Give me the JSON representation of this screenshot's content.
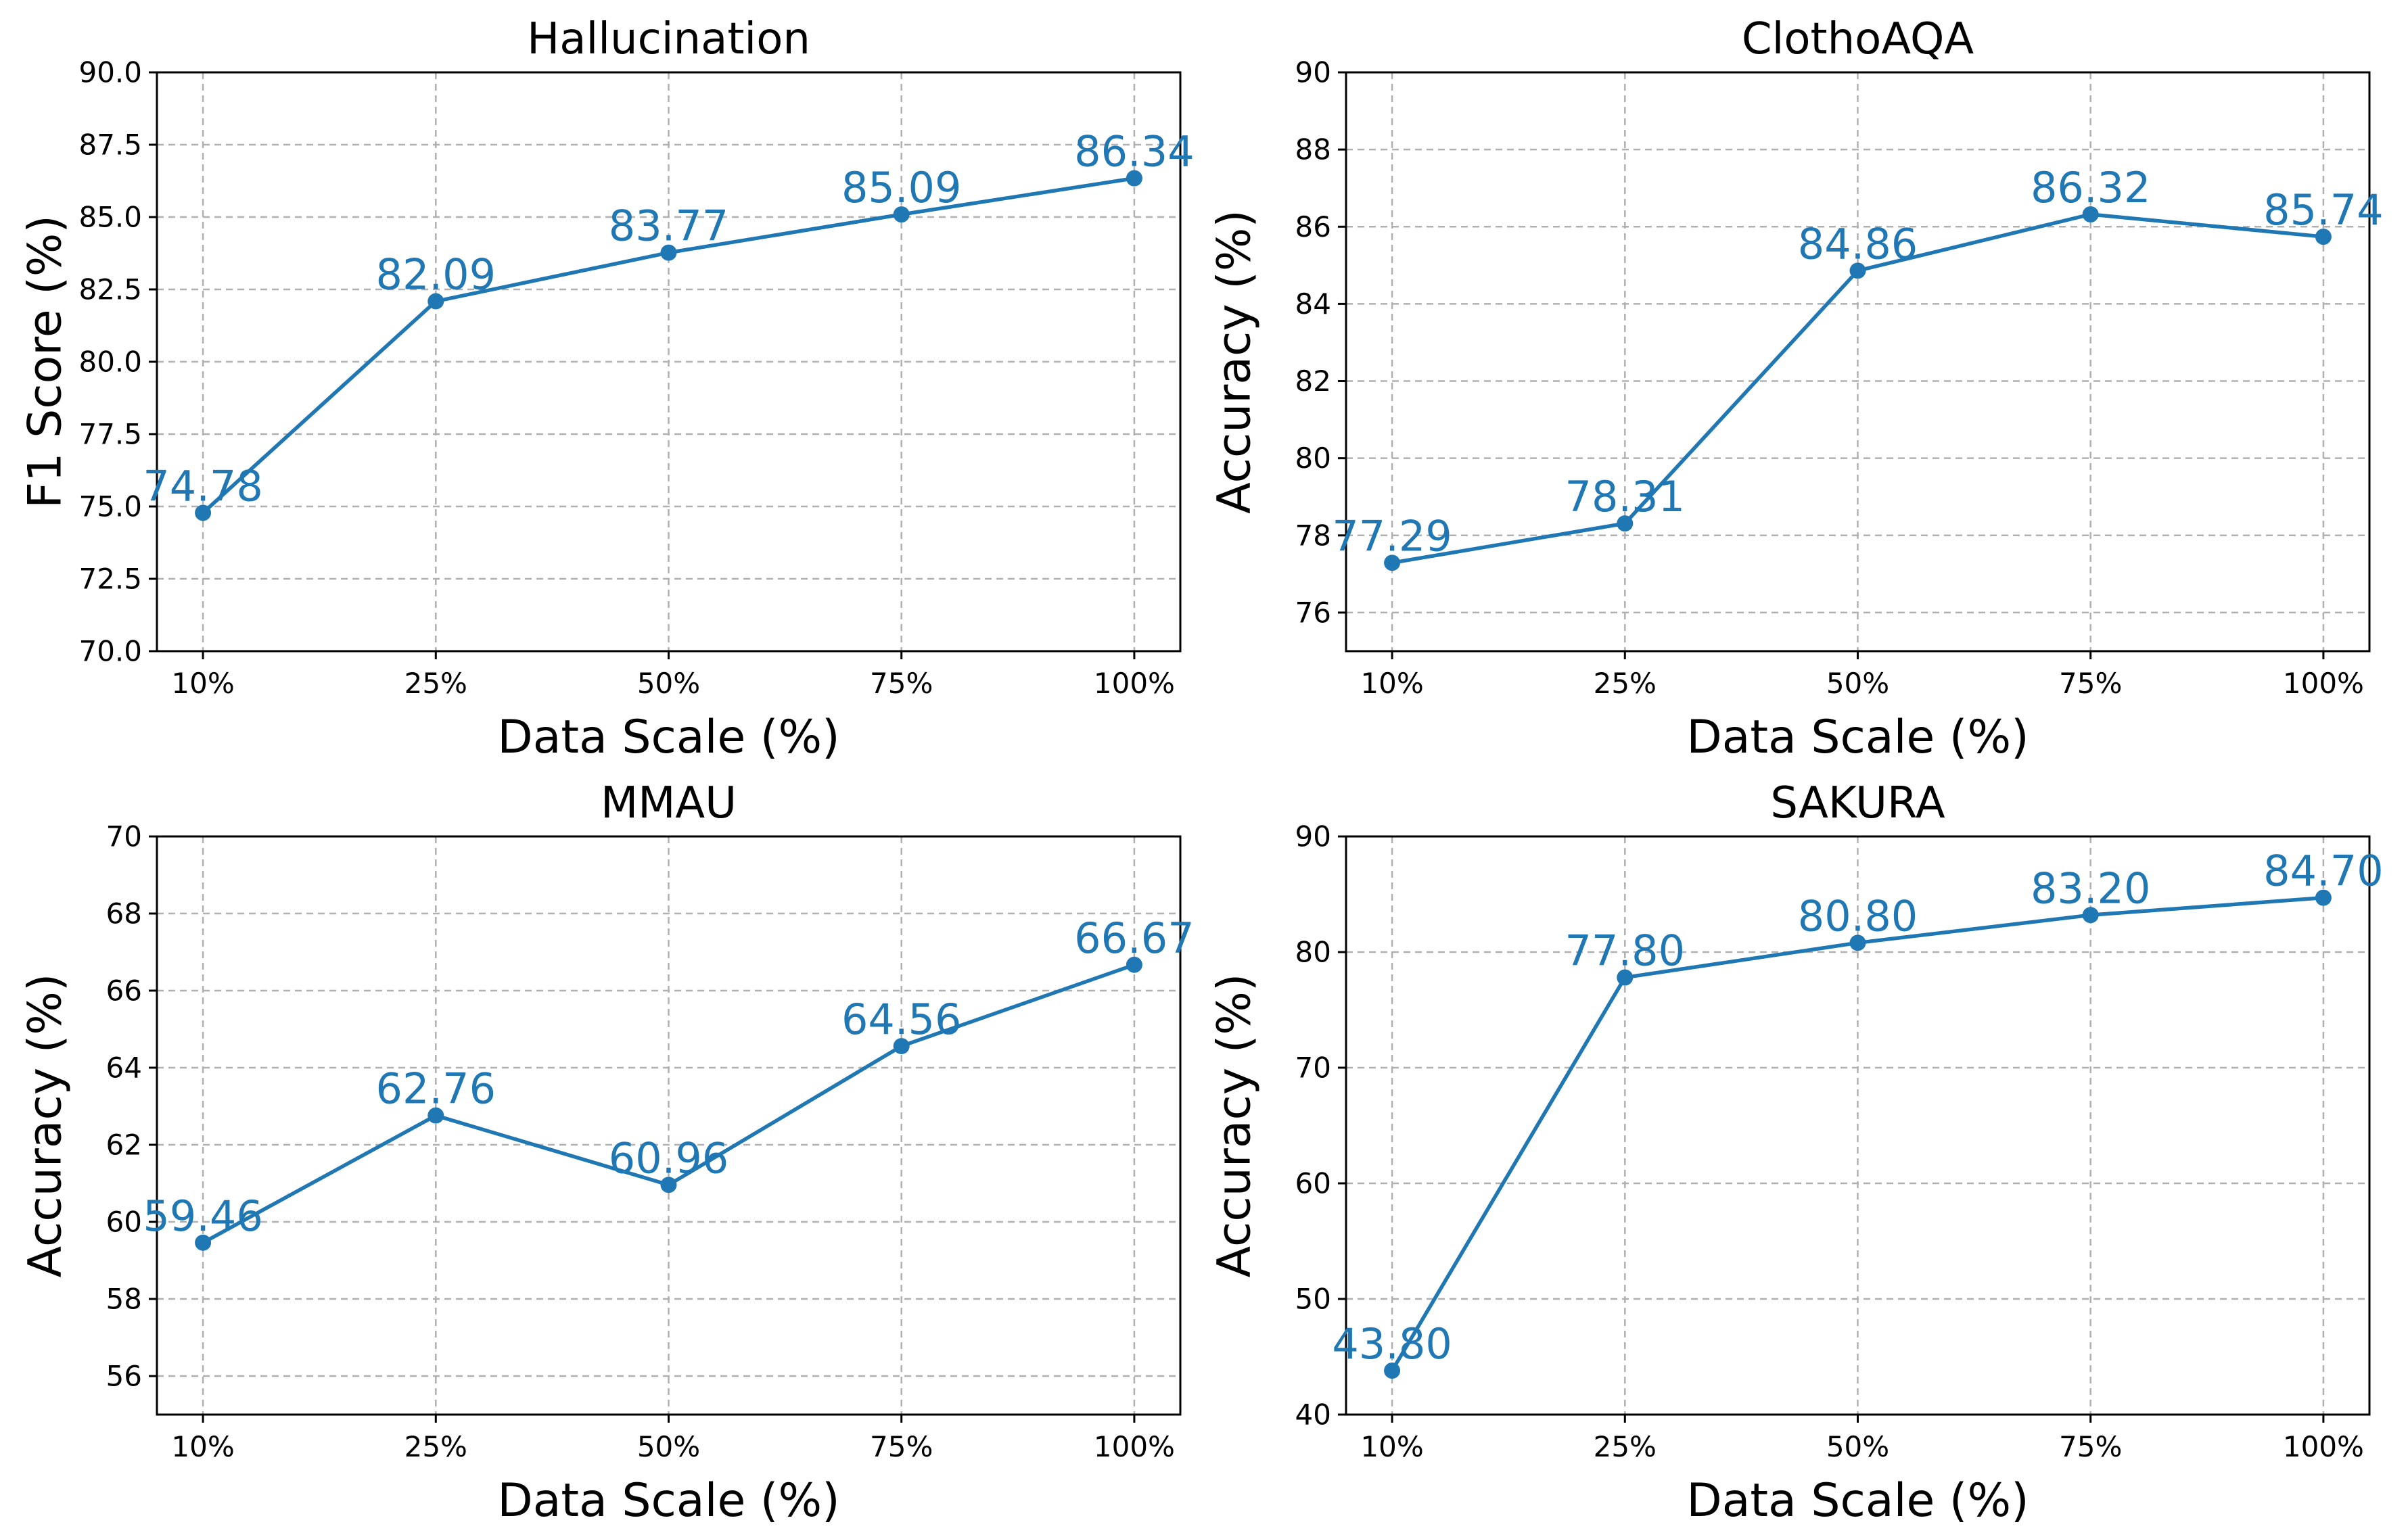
{
  "chart_data": [
    {
      "type": "line",
      "title": "Hallucination",
      "xlabel": "Data Scale (%)",
      "ylabel": "F1 Score (%)",
      "categories": [
        "10%",
        "25%",
        "50%",
        "75%",
        "100%"
      ],
      "values": [
        74.78,
        82.09,
        83.77,
        85.09,
        86.34
      ],
      "value_labels": [
        "74.78",
        "82.09",
        "83.77",
        "85.09",
        "86.34"
      ],
      "ylim": [
        70,
        90
      ],
      "yticks": [
        70.0,
        72.5,
        75.0,
        77.5,
        80.0,
        82.5,
        85.0,
        87.5,
        90.0
      ],
      "ytick_labels": [
        "70.0",
        "72.5",
        "75.0",
        "77.5",
        "80.0",
        "82.5",
        "85.0",
        "87.5",
        "90.0"
      ],
      "grid": true,
      "color": "#1f77b4"
    },
    {
      "type": "line",
      "title": "ClothoAQA",
      "xlabel": "Data Scale (%)",
      "ylabel": "Accuracy (%)",
      "categories": [
        "10%",
        "25%",
        "50%",
        "75%",
        "100%"
      ],
      "values": [
        77.29,
        78.31,
        84.86,
        86.32,
        85.74
      ],
      "value_labels": [
        "77.29",
        "78.31",
        "84.86",
        "86.32",
        "85.74"
      ],
      "ylim": [
        75,
        90
      ],
      "yticks": [
        76,
        78,
        80,
        82,
        84,
        86,
        88,
        90
      ],
      "ytick_labels": [
        "76",
        "78",
        "80",
        "82",
        "84",
        "86",
        "88",
        "90"
      ],
      "grid": true,
      "color": "#1f77b4"
    },
    {
      "type": "line",
      "title": "MMAU",
      "xlabel": "Data Scale (%)",
      "ylabel": "Accuracy (%)",
      "categories": [
        "10%",
        "25%",
        "50%",
        "75%",
        "100%"
      ],
      "values": [
        59.46,
        62.76,
        60.96,
        64.56,
        66.67
      ],
      "value_labels": [
        "59.46",
        "62.76",
        "60.96",
        "64.56",
        "66.67"
      ],
      "ylim": [
        55,
        70
      ],
      "yticks": [
        56,
        58,
        60,
        62,
        64,
        66,
        68,
        70
      ],
      "ytick_labels": [
        "56",
        "58",
        "60",
        "62",
        "64",
        "66",
        "68",
        "70"
      ],
      "grid": true,
      "color": "#1f77b4"
    },
    {
      "type": "line",
      "title": "SAKURA",
      "xlabel": "Data Scale (%)",
      "ylabel": "Accuracy (%)",
      "categories": [
        "10%",
        "25%",
        "50%",
        "75%",
        "100%"
      ],
      "values": [
        43.8,
        77.8,
        80.8,
        83.2,
        84.7
      ],
      "value_labels": [
        "43.80",
        "77.80",
        "80.80",
        "83.20",
        "84.70"
      ],
      "ylim": [
        40,
        90
      ],
      "yticks": [
        40,
        50,
        60,
        70,
        80,
        90
      ],
      "ytick_labels": [
        "40",
        "50",
        "60",
        "70",
        "80",
        "90"
      ],
      "grid": true,
      "color": "#1f77b4"
    }
  ]
}
